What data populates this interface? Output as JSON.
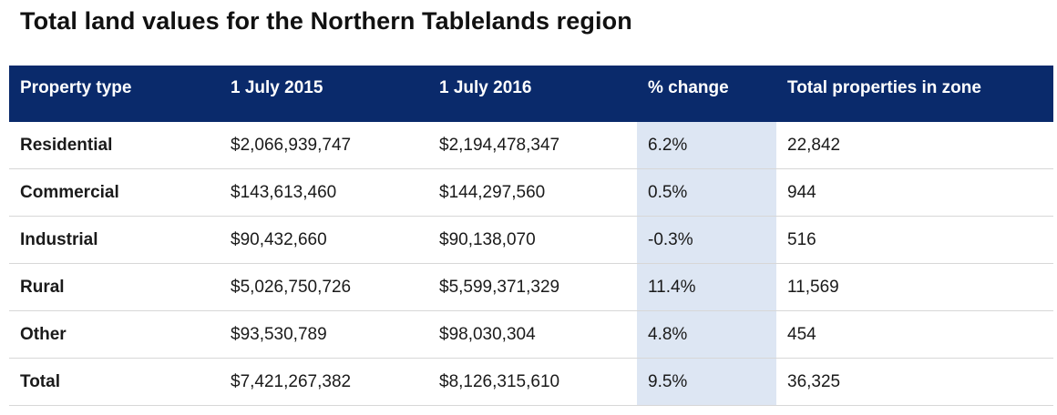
{
  "title": "Total land values for the Northern Tablelands region",
  "table": {
    "headers": [
      "Property type",
      "1 July 2015",
      "1 July 2016",
      "% change",
      "Total properties in zone"
    ],
    "rows": [
      [
        "Residential",
        "$2,066,939,747",
        "$2,194,478,347",
        "6.2%",
        "22,842"
      ],
      [
        "Commercial",
        "$143,613,460",
        "$144,297,560",
        "0.5%",
        "944"
      ],
      [
        "Industrial",
        "$90,432,660",
        "$90,138,070",
        "-0.3%",
        "516"
      ],
      [
        "Rural",
        "$5,026,750,726",
        "$5,599,371,329",
        "11.4%",
        "11,569"
      ],
      [
        "Other",
        "$93,530,789",
        "$98,030,304",
        "4.8%",
        "454"
      ],
      [
        "Total",
        "$7,421,267,382",
        "$8,126,315,610",
        "9.5%",
        "36,325"
      ]
    ]
  },
  "colors": {
    "header_background": "#0a2a6b",
    "header_text": "#ffffff",
    "highlight_column": "#dde6f3"
  }
}
